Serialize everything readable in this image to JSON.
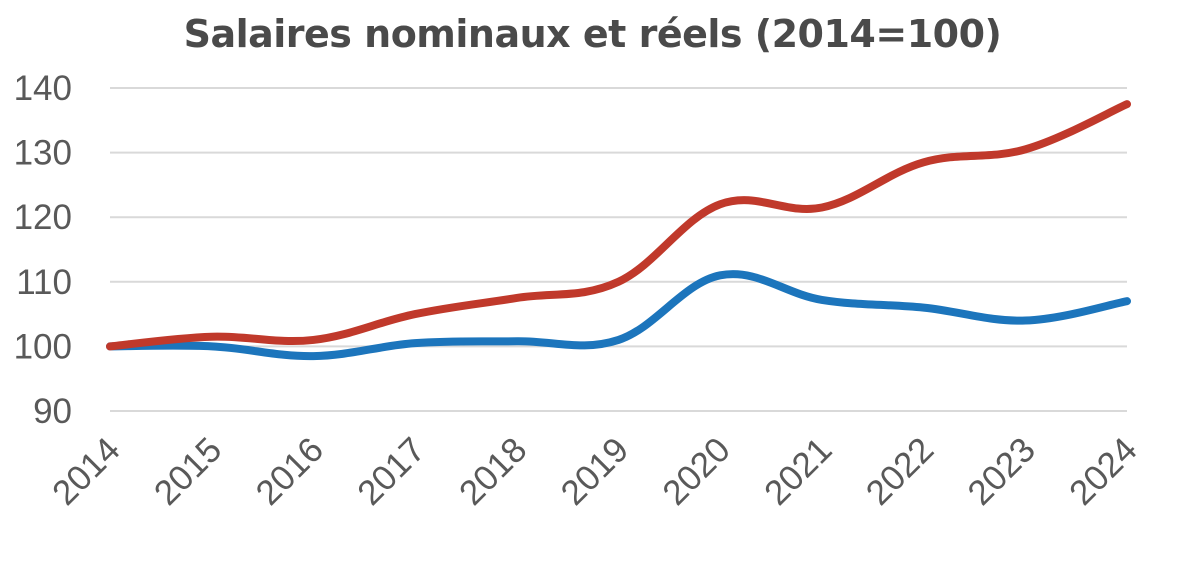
{
  "chart_data": {
    "type": "line",
    "title": "Salaires nominaux et réels (2014=100)",
    "xlabel": "",
    "ylabel": "",
    "categories": [
      "2014",
      "2015",
      "2016",
      "2017",
      "2018",
      "2019",
      "2020",
      "2021",
      "2022",
      "2023",
      "2024"
    ],
    "series": [
      {
        "color": "#c0392b",
        "values": [
          100,
          101.5,
          101,
          105,
          107.5,
          110,
          122,
          121.5,
          128.5,
          130.5,
          137.5
        ]
      },
      {
        "color": "#1c75bc",
        "values": [
          100,
          100,
          98.5,
          100.5,
          100.8,
          101,
          111,
          107.2,
          106,
          104,
          107
        ]
      }
    ],
    "ylim": [
      90,
      140
    ],
    "yticks": [
      140,
      130,
      120,
      110,
      100,
      90
    ],
    "grid": true,
    "legend": "none"
  }
}
